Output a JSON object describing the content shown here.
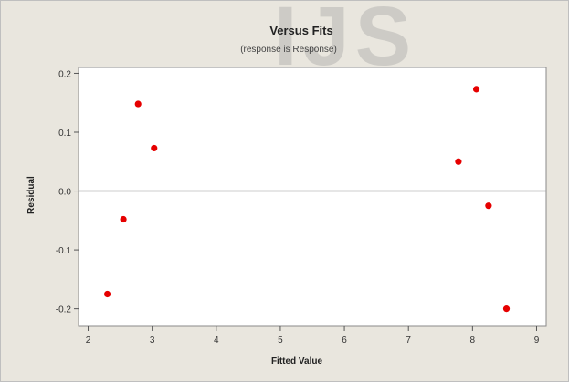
{
  "chart_data": {
    "type": "scatter",
    "title": "Versus Fits",
    "subtitle": "(response is Response)",
    "xlabel": "Fitted Value",
    "ylabel": "Residual",
    "xlim": [
      1.85,
      9.15
    ],
    "ylim": [
      -0.23,
      0.21
    ],
    "xticks": [
      2,
      3,
      4,
      5,
      6,
      7,
      8,
      9
    ],
    "yticks": [
      -0.2,
      -0.1,
      0.0,
      0.1,
      0.2
    ],
    "ytick_labels": [
      "-0.2",
      "-0.1",
      "0.0",
      "0.1",
      "0.2"
    ],
    "reference_line_y": 0,
    "points": [
      {
        "x": 2.3,
        "y": -0.175
      },
      {
        "x": 2.55,
        "y": -0.048
      },
      {
        "x": 2.78,
        "y": 0.148
      },
      {
        "x": 3.03,
        "y": 0.073
      },
      {
        "x": 7.78,
        "y": 0.05
      },
      {
        "x": 8.06,
        "y": 0.173
      },
      {
        "x": 8.25,
        "y": -0.025
      },
      {
        "x": 8.53,
        "y": -0.2
      }
    ],
    "point_color": "#e60000",
    "grid": false,
    "legend": "none"
  },
  "watermark_text": "IJS"
}
